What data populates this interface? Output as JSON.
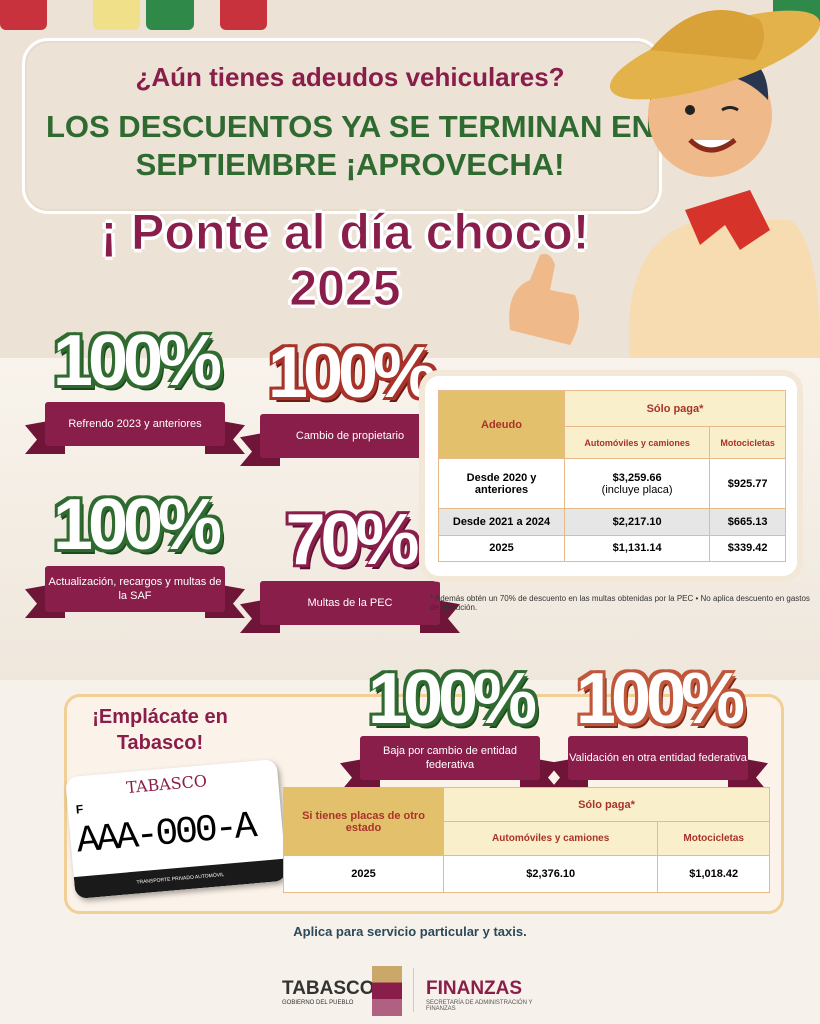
{
  "header": {
    "question": "¿Aún tienes adeudos vehiculares?",
    "subtitle": "LOS DESCUENTOS YA SE TERMINAN EN SEPTIEMBRE ¡APROVECHA!",
    "title": "¡ Ponte al día choco! 2025"
  },
  "badges": [
    {
      "pct": "100%",
      "label": "Refrendo 2023 y anteriores",
      "color": "#2f6b30"
    },
    {
      "pct": "100%",
      "label": "Cambio de propietario",
      "color": "#a8332a"
    },
    {
      "pct": "100%",
      "label": "Actualización, recargos y multas de la SAF",
      "color": "#2f6b30"
    },
    {
      "pct": "70%",
      "label": "Multas de la PEC",
      "color": "#8a1e4a"
    }
  ],
  "table1": {
    "col0": "Adeudo",
    "group": "Sólo paga*",
    "col1": "Automóviles y camiones",
    "col2": "Motocicletas",
    "rows": [
      [
        "Desde 2020 y anteriores",
        "$3,259.66",
        "(incluye placa)",
        "$925.77"
      ],
      [
        "Desde 2021 a 2024",
        "$2,217.10",
        "",
        "$665.13"
      ],
      [
        "2025",
        "$1,131.14",
        "",
        "$339.42"
      ]
    ]
  },
  "note": "* Además obtén un 70% de descuento en las multas obtenidas por la PEC • No aplica descuento en gastos de ejecución.",
  "emplacate": {
    "title": "¡Emplácate en Tabasco!",
    "badges": [
      {
        "pct": "100%",
        "label": "Baja por cambio de entidad federativa",
        "color": "#2f6b30"
      },
      {
        "pct": "100%",
        "label": "Validación en otra entidad federativa",
        "color": "#c0563a"
      }
    ],
    "plate": {
      "state": "TABASCO",
      "letter": "F",
      "number": "AAA-000-A",
      "footer": "TRANSPORTE PRIVADO AUTOMÓVIL"
    },
    "table": {
      "col0": "Si tienes placas de otro estado",
      "group": "Sólo paga*",
      "col1": "Automóviles y camiones",
      "col2": "Motocicletas",
      "row": [
        "2025",
        "$2,376.10",
        "$1,018.42"
      ]
    }
  },
  "footer": {
    "aplica": "Aplica para servicio particular y taxis.",
    "logo1": "TABASCO",
    "logo1_sub": "GOBIERNO DEL PUEBLO",
    "logo2": "FINANZAS",
    "logo2_sub": "SECRETARÍA DE ADMINISTRACIÓN Y FINANZAS"
  },
  "colors": {
    "maroon": "#8a1e4a",
    "green": "#2f6b30",
    "gold": "#e3c06b"
  }
}
